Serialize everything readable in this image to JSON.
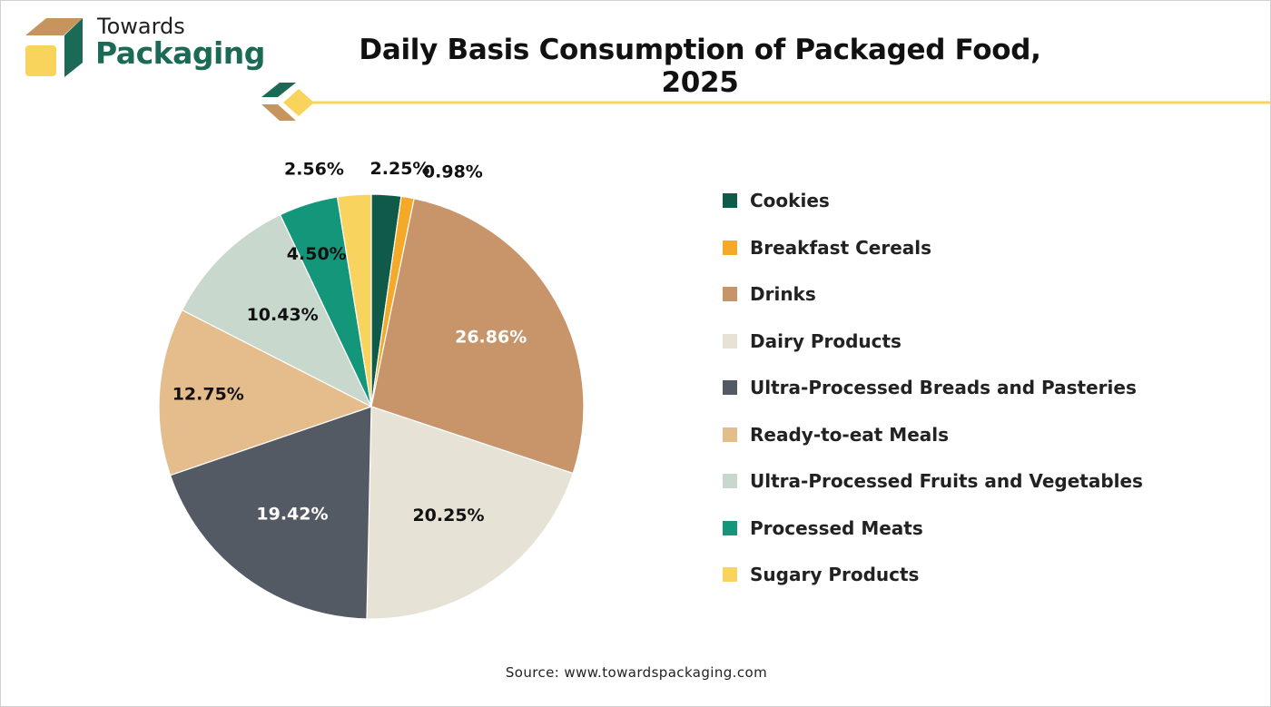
{
  "logo": {
    "word_1": "Towards",
    "word_2": "Packaging",
    "colors": {
      "brown": "#c8945e",
      "green": "#1a6a56",
      "yellow": "#f9d45c"
    }
  },
  "header": {
    "title": "Daily Basis Consumption of Packaged Food, 2025",
    "divider_color": "#f6d45e"
  },
  "chart_data": {
    "type": "pie",
    "title": "Daily Basis Consumption of Packaged Food, 2025",
    "start_angle_deg": 0,
    "direction": "clockwise",
    "legend_position": "right",
    "slices": [
      {
        "name": "Cookies",
        "value": 2.25,
        "label": "2.25%",
        "color": "#0f5a48",
        "label_color": "#111111"
      },
      {
        "name": "Breakfast Cereals",
        "value": 0.98,
        "label": "0.98%",
        "color": "#f5a929",
        "label_color": "#111111"
      },
      {
        "name": "Drinks",
        "value": 26.86,
        "label": "26.86%",
        "color": "#c8956a",
        "label_color": "#ffffff"
      },
      {
        "name": "Dairy Products",
        "value": 20.25,
        "label": "20.25%",
        "color": "#e7e2d6",
        "label_color": "#111111"
      },
      {
        "name": "Ultra-Processed Breads and Pasteries",
        "value": 19.42,
        "label": "19.42%",
        "color": "#545a63",
        "label_color": "#ffffff"
      },
      {
        "name": "Ready-to-eat Meals",
        "value": 12.75,
        "label": "12.75%",
        "color": "#e5bd8d",
        "label_color": "#111111"
      },
      {
        "name": "Ultra-Processed Fruits and Vegetables",
        "value": 10.43,
        "label": "10.43%",
        "color": "#c9d8cd",
        "label_color": "#111111"
      },
      {
        "name": "Processed Meats",
        "value": 4.5,
        "label": "4.50%",
        "color": "#14967a",
        "label_color": "#111111"
      },
      {
        "name": "Sugary Products",
        "value": 2.56,
        "label": "2.56%",
        "color": "#f8d35e",
        "label_color": "#111111"
      }
    ]
  },
  "footer": {
    "source": "Source: www.towardspackaging.com"
  }
}
